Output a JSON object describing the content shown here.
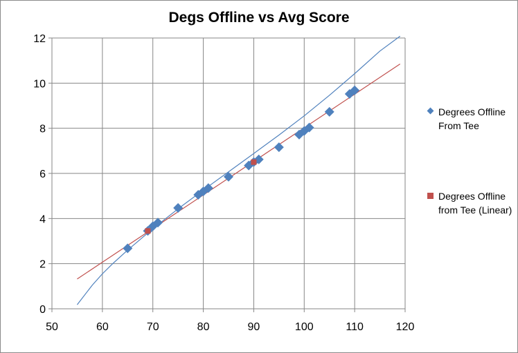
{
  "chart_data": {
    "type": "scatter",
    "title": "Degs Offline vs Avg Score",
    "xlabel": "",
    "ylabel": "",
    "xlim": [
      50,
      120
    ],
    "ylim": [
      0,
      12
    ],
    "x_ticks": [
      50,
      60,
      70,
      80,
      90,
      100,
      110,
      120
    ],
    "y_ticks": [
      0,
      2,
      4,
      6,
      8,
      10,
      12
    ],
    "grid": true,
    "legend_position": "right",
    "series": [
      {
        "name": "Degrees Offline From Tee",
        "kind": "scatter",
        "marker": "diamond",
        "color": "#4f81bd",
        "points": [
          [
            65,
            2.68
          ],
          [
            69,
            3.45
          ],
          [
            70,
            3.66
          ],
          [
            71,
            3.82
          ],
          [
            75,
            4.47
          ],
          [
            79,
            5.05
          ],
          [
            80,
            5.2
          ],
          [
            81,
            5.35
          ],
          [
            85,
            5.85
          ],
          [
            89,
            6.35
          ],
          [
            90,
            6.5
          ],
          [
            91,
            6.62
          ],
          [
            95,
            7.16
          ],
          [
            99,
            7.72
          ],
          [
            100,
            7.88
          ],
          [
            101,
            8.03
          ],
          [
            105,
            8.73
          ],
          [
            109,
            9.52
          ],
          [
            110,
            9.68
          ]
        ]
      },
      {
        "name": "Degrees Offline from Tee (Linear)",
        "kind": "line",
        "marker": "square",
        "color": "#c0504d",
        "points": [
          [
            55,
            1.32
          ],
          [
            119,
            10.85
          ]
        ],
        "extra_markers": [
          [
            69,
            3.45
          ],
          [
            90,
            6.5
          ]
        ]
      },
      {
        "name": "",
        "kind": "curve",
        "color": "#4f81bd",
        "points": [
          [
            55,
            0.18
          ],
          [
            58,
            1.05
          ],
          [
            60,
            1.55
          ],
          [
            62,
            1.99
          ],
          [
            65,
            2.6
          ],
          [
            70,
            3.55
          ],
          [
            75,
            4.43
          ],
          [
            80,
            5.26
          ],
          [
            85,
            6.07
          ],
          [
            90,
            6.88
          ],
          [
            95,
            7.7
          ],
          [
            100,
            8.55
          ],
          [
            105,
            9.46
          ],
          [
            110,
            10.42
          ],
          [
            115,
            11.42
          ],
          [
            119,
            12.08
          ]
        ]
      }
    ]
  }
}
